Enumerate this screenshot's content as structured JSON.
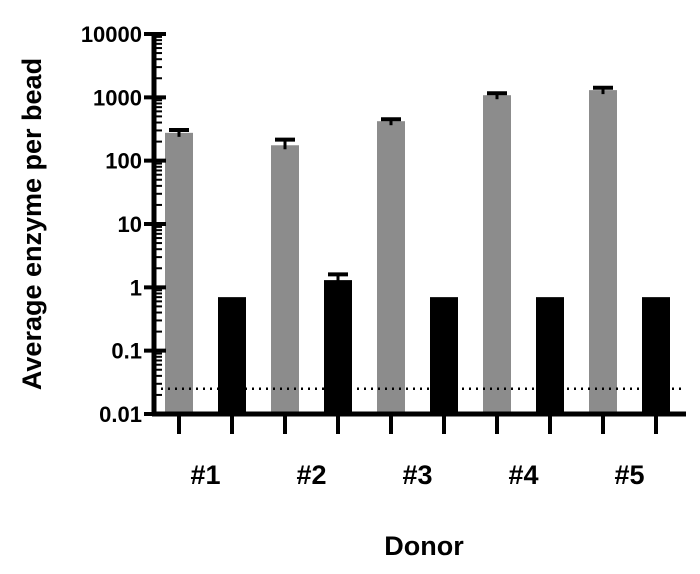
{
  "chart_data": {
    "type": "bar",
    "title": "",
    "xlabel": "Donor",
    "ylabel": "Average enzyme per bead",
    "yscale": "log",
    "ylim": [
      0.01,
      10000
    ],
    "ytick_labels": [
      "0.01",
      "0.1",
      "1",
      "10",
      "100",
      "1000",
      "10000"
    ],
    "categories": [
      "#1",
      "#2",
      "#3",
      "#4",
      "#5"
    ],
    "series": [
      {
        "color": "#8c8c8c",
        "values": [
          275,
          175,
          420,
          1080,
          1300
        ],
        "error": [
          30,
          40,
          30,
          80,
          120
        ]
      },
      {
        "color": "#000000",
        "values": [
          0.7,
          1.3,
          0.7,
          0.7,
          0.7
        ],
        "error": [
          0,
          0.3,
          0,
          0,
          0
        ]
      }
    ],
    "reference_line": {
      "value": 0.025,
      "style": "dotted"
    },
    "grid": false,
    "legend": "none"
  }
}
